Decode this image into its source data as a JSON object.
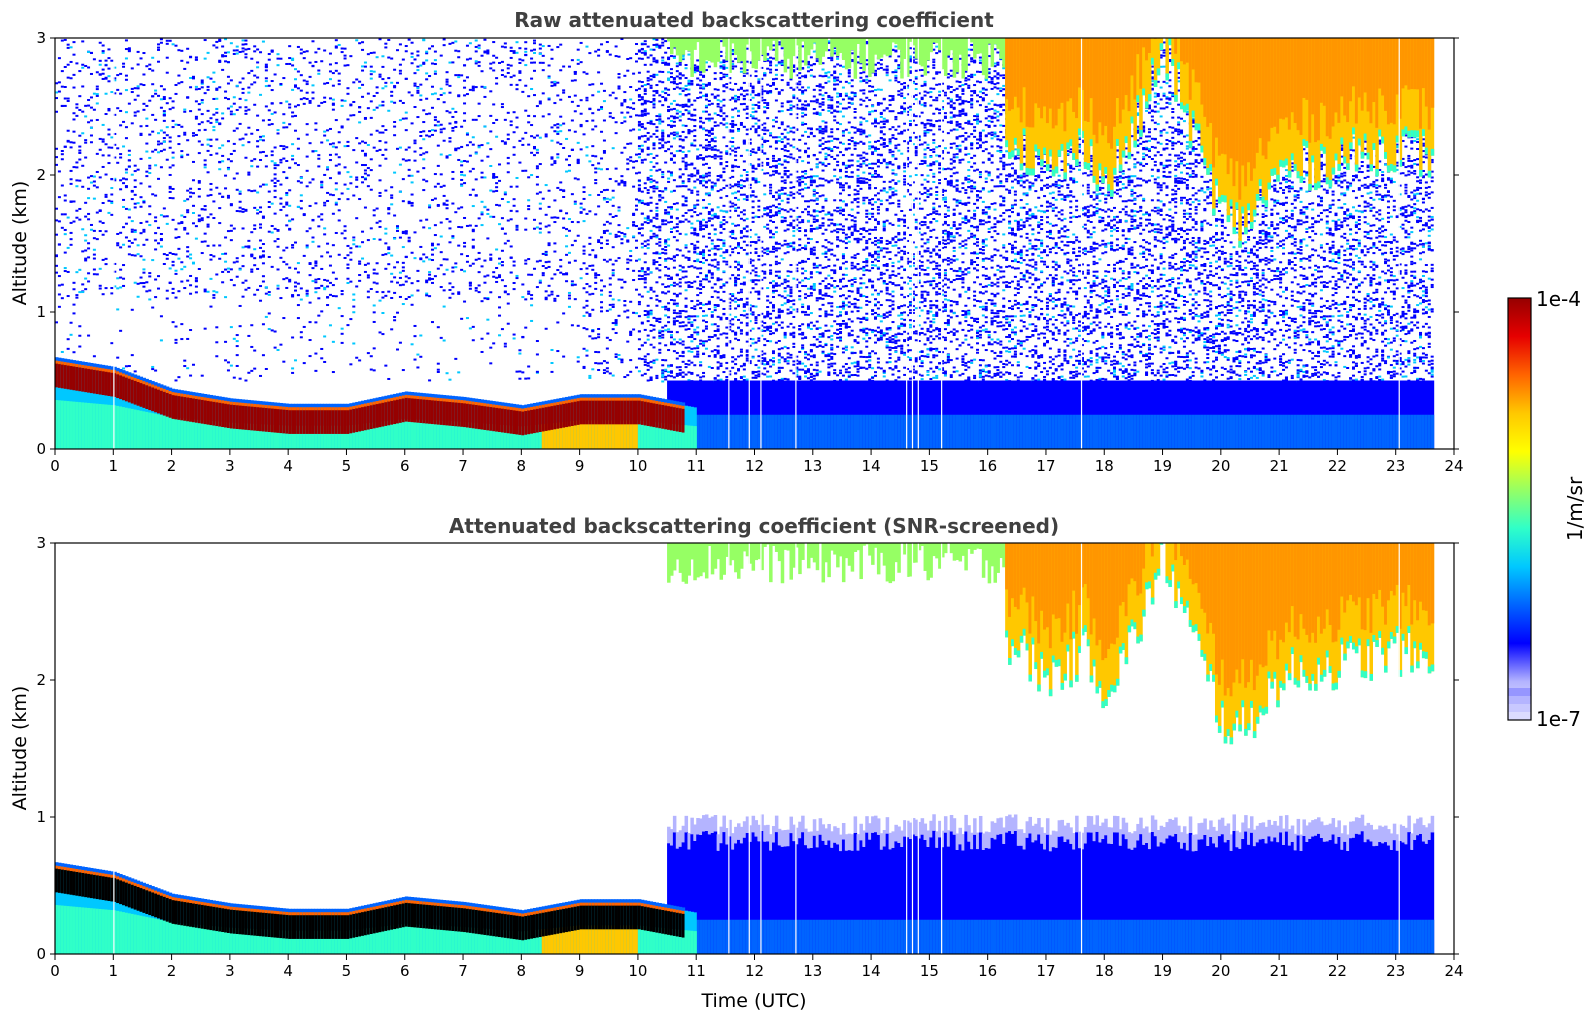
{
  "chart_data": [
    {
      "type": "heatmap",
      "title": "Raw attenuated backscattering coefficient",
      "xlabel": "",
      "ylabel": "Altitude (km)",
      "xlim": [
        0,
        24
      ],
      "ylim": [
        0,
        3
      ],
      "x_ticks": [
        "0",
        "1",
        "2",
        "3",
        "4",
        "5",
        "6",
        "7",
        "8",
        "9",
        "10",
        "11",
        "12",
        "13",
        "14",
        "15",
        "16",
        "17",
        "18",
        "19",
        "20",
        "21",
        "22",
        "23",
        "24"
      ],
      "y_ticks": [
        "0",
        "1",
        "2",
        "3"
      ],
      "data_end_hour": 23.65,
      "features": {
        "boundary_layer_top_km": [
          [
            0,
            0.65
          ],
          [
            1,
            0.58
          ],
          [
            2,
            0.42
          ],
          [
            3,
            0.35
          ],
          [
            4,
            0.31
          ],
          [
            5,
            0.31
          ],
          [
            6,
            0.4
          ],
          [
            7,
            0.36
          ],
          [
            8,
            0.3
          ],
          [
            9,
            0.38
          ],
          [
            10,
            0.38
          ],
          [
            11,
            0.3
          ]
        ],
        "cloud_base_km": [
          [
            16.3,
            2.3
          ],
          [
            17,
            2.0
          ],
          [
            17.7,
            2.2
          ],
          [
            18,
            1.9
          ],
          [
            18.5,
            2.3
          ],
          [
            19,
            2.9
          ],
          [
            20,
            1.7
          ],
          [
            20.3,
            1.6
          ],
          [
            21,
            2.0
          ],
          [
            22,
            2.1
          ],
          [
            23,
            2.2
          ],
          [
            23.65,
            2.1
          ]
        ],
        "noise_band_km": [
          0,
          0.5
        ]
      }
    },
    {
      "type": "heatmap",
      "title": "Attenuated backscattering coefficient (SNR-screened)",
      "xlabel": "Time (UTC)",
      "ylabel": "Altitude (km)",
      "xlim": [
        0,
        24
      ],
      "ylim": [
        0,
        3
      ],
      "x_ticks": [
        "0",
        "1",
        "2",
        "3",
        "4",
        "5",
        "6",
        "7",
        "8",
        "9",
        "10",
        "11",
        "12",
        "13",
        "14",
        "15",
        "16",
        "17",
        "18",
        "19",
        "20",
        "21",
        "22",
        "23",
        "24"
      ],
      "y_ticks": [
        "0",
        "1",
        "2",
        "3"
      ],
      "data_end_hour": 23.65
    }
  ],
  "colorbar": {
    "label": "1/m/sr",
    "max_label": "1e-4",
    "min_label": "1e-7",
    "scale": "log",
    "colormap": [
      "#e8e8ff",
      "#b4b4ff",
      "#0000ff",
      "#0064ff",
      "#00c8ff",
      "#30ffc8",
      "#96ff64",
      "#ffff00",
      "#ffc800",
      "#ff6400",
      "#e60000",
      "#960000"
    ]
  }
}
